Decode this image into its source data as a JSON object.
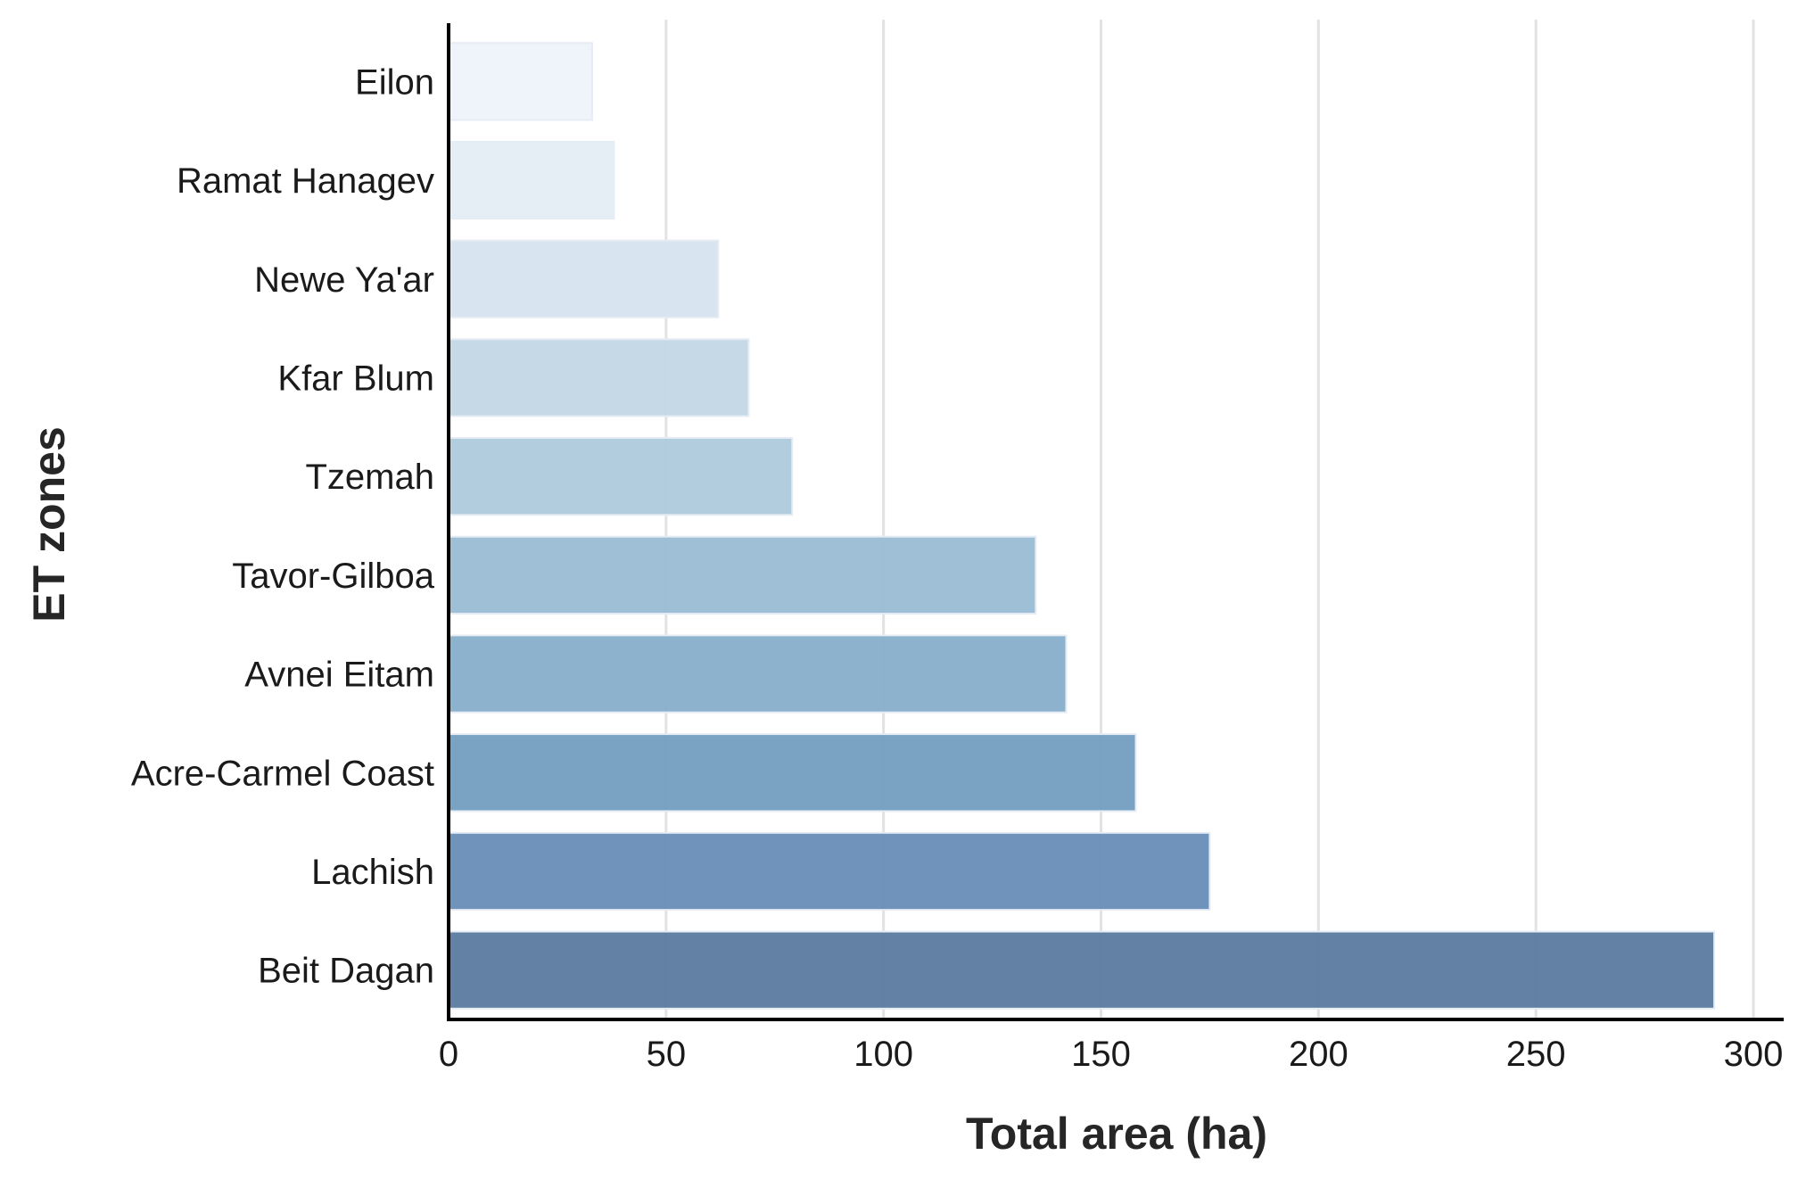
{
  "chart_data": {
    "type": "bar",
    "orientation": "horizontal",
    "categories": [
      "Eilon",
      "Ramat Hanagev",
      "Newe Ya'ar",
      "Kfar Blum",
      "Tzemah",
      "Tavor-Gilboa",
      "Avnei Eitam",
      "Acre-Carmel Coast",
      "Lachish",
      "Beit Dagan"
    ],
    "values": [
      33,
      38,
      62,
      69,
      79,
      135,
      142,
      158,
      175,
      291
    ],
    "colors": [
      "#eef3fa",
      "#e5edf5",
      "#d7e3ee",
      "#c4d8e6",
      "#aecbdd",
      "#9bbdd5",
      "#89afcc",
      "#759fc1",
      "#6a8fb8",
      "#5e7da2"
    ],
    "xlabel": "Total area (ha)",
    "ylabel": "ET zones",
    "xlim": [
      0,
      305
    ],
    "xticks": [
      0,
      50,
      100,
      150,
      200,
      250,
      300
    ],
    "grid": "vertical"
  }
}
